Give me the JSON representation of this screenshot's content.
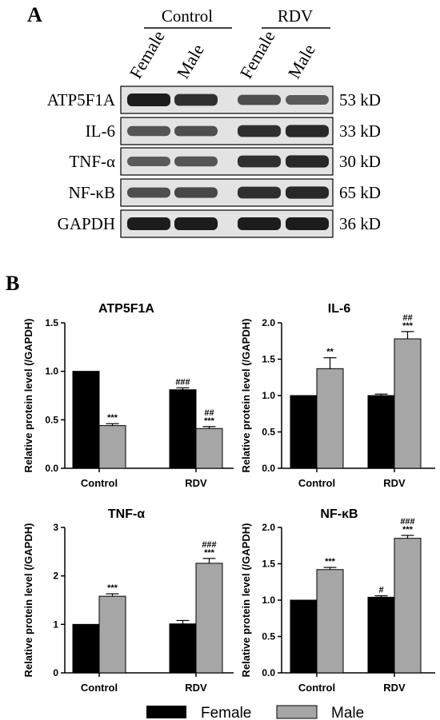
{
  "panel_a": {
    "label": "A",
    "groups": [
      "Control",
      "RDV"
    ],
    "lanes": [
      "Female",
      "Male",
      "Female",
      "Male"
    ],
    "blots": [
      {
        "protein": "ATP5F1A",
        "mw": "53 kD",
        "intensity": [
          1.0,
          0.85,
          0.6,
          0.5
        ]
      },
      {
        "protein": "IL-6",
        "mw": "33 kD",
        "intensity": [
          0.55,
          0.6,
          0.85,
          0.9
        ]
      },
      {
        "protein": "TNF-α",
        "mw": "30 kD",
        "intensity": [
          0.5,
          0.55,
          0.85,
          0.9
        ]
      },
      {
        "protein": "NF-κB",
        "mw": "65 kD",
        "intensity": [
          0.6,
          0.65,
          0.85,
          0.9
        ]
      },
      {
        "protein": "GAPDH",
        "mw": "36 kD",
        "intensity": [
          1.0,
          1.0,
          1.0,
          1.0
        ]
      }
    ]
  },
  "panel_b": {
    "label": "B"
  },
  "legend": {
    "female": "Female",
    "male": "Male"
  },
  "colors": {
    "female": "#000000",
    "male": "#a6a6a6"
  },
  "chart_data": [
    {
      "type": "bar",
      "title": "ATP5F1A",
      "ylabel": "Relative protein level (/GAPDH)",
      "categories": [
        "Control",
        "RDV"
      ],
      "ylim": [
        0,
        1.5
      ],
      "yticks": [
        "0.0",
        "0.5",
        "1.0",
        "1.5"
      ],
      "series": [
        {
          "name": "Female",
          "values": [
            1.0,
            0.81
          ],
          "errors": [
            0,
            0.02
          ],
          "annotations": [
            "",
            "###"
          ]
        },
        {
          "name": "Male",
          "values": [
            0.44,
            0.41
          ],
          "errors": [
            0.02,
            0.02
          ],
          "annotations": [
            "***",
            "##\n***"
          ]
        }
      ]
    },
    {
      "type": "bar",
      "title": "IL-6",
      "ylabel": "Relative protein level (/GAPDH)",
      "categories": [
        "Control",
        "RDV"
      ],
      "ylim": [
        0,
        2.0
      ],
      "yticks": [
        "0.0",
        "0.5",
        "1.0",
        "1.5",
        "2.0"
      ],
      "series": [
        {
          "name": "Female",
          "values": [
            1.0,
            1.0
          ],
          "errors": [
            0,
            0.02
          ],
          "annotations": [
            "",
            ""
          ]
        },
        {
          "name": "Male",
          "values": [
            1.37,
            1.78
          ],
          "errors": [
            0.15,
            0.1
          ],
          "annotations": [
            "**",
            "##\n***"
          ]
        }
      ]
    },
    {
      "type": "bar",
      "title": "TNF-α",
      "ylabel": "Relative protein level (/GAPDH)",
      "categories": [
        "Control",
        "RDV"
      ],
      "ylim": [
        0,
        3
      ],
      "yticks": [
        "0",
        "1",
        "2",
        "3"
      ],
      "series": [
        {
          "name": "Female",
          "values": [
            1.0,
            1.01
          ],
          "errors": [
            0,
            0.07
          ],
          "annotations": [
            "",
            ""
          ]
        },
        {
          "name": "Male",
          "values": [
            1.58,
            2.26
          ],
          "errors": [
            0.05,
            0.1
          ],
          "annotations": [
            "***",
            "###\n***"
          ]
        }
      ]
    },
    {
      "type": "bar",
      "title": "NF-κB",
      "ylabel": "Relative protein level (/GAPDH)",
      "categories": [
        "Control",
        "RDV"
      ],
      "ylim": [
        0,
        2.0
      ],
      "yticks": [
        "0.0",
        "0.5",
        "1.0",
        "1.5",
        "2.0"
      ],
      "series": [
        {
          "name": "Female",
          "values": [
            1.0,
            1.04
          ],
          "errors": [
            0,
            0.02
          ],
          "annotations": [
            "",
            "#"
          ]
        },
        {
          "name": "Male",
          "values": [
            1.42,
            1.85
          ],
          "errors": [
            0.03,
            0.04
          ],
          "annotations": [
            "***",
            "###\n***"
          ]
        }
      ]
    }
  ]
}
